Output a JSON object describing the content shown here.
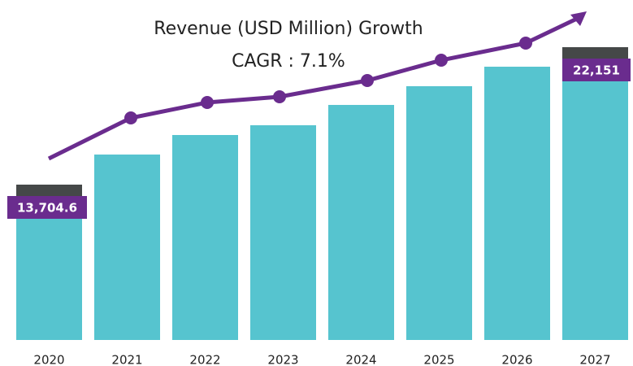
{
  "chart_data": {
    "type": "bar",
    "title": "Revenue (USD Million) Growth",
    "subtitle": "CAGR : 7.1%",
    "categories": [
      "2020",
      "2021",
      "2022",
      "2023",
      "2024",
      "2025",
      "2026",
      "2027"
    ],
    "values": [
      13704.6,
      15553,
      16753,
      17353,
      18602,
      19752,
      20951,
      22151
    ],
    "value_labels": [
      "13,704.6",
      null,
      null,
      null,
      null,
      null,
      null,
      "22,151"
    ],
    "color": "#56c4cf"
  }
}
